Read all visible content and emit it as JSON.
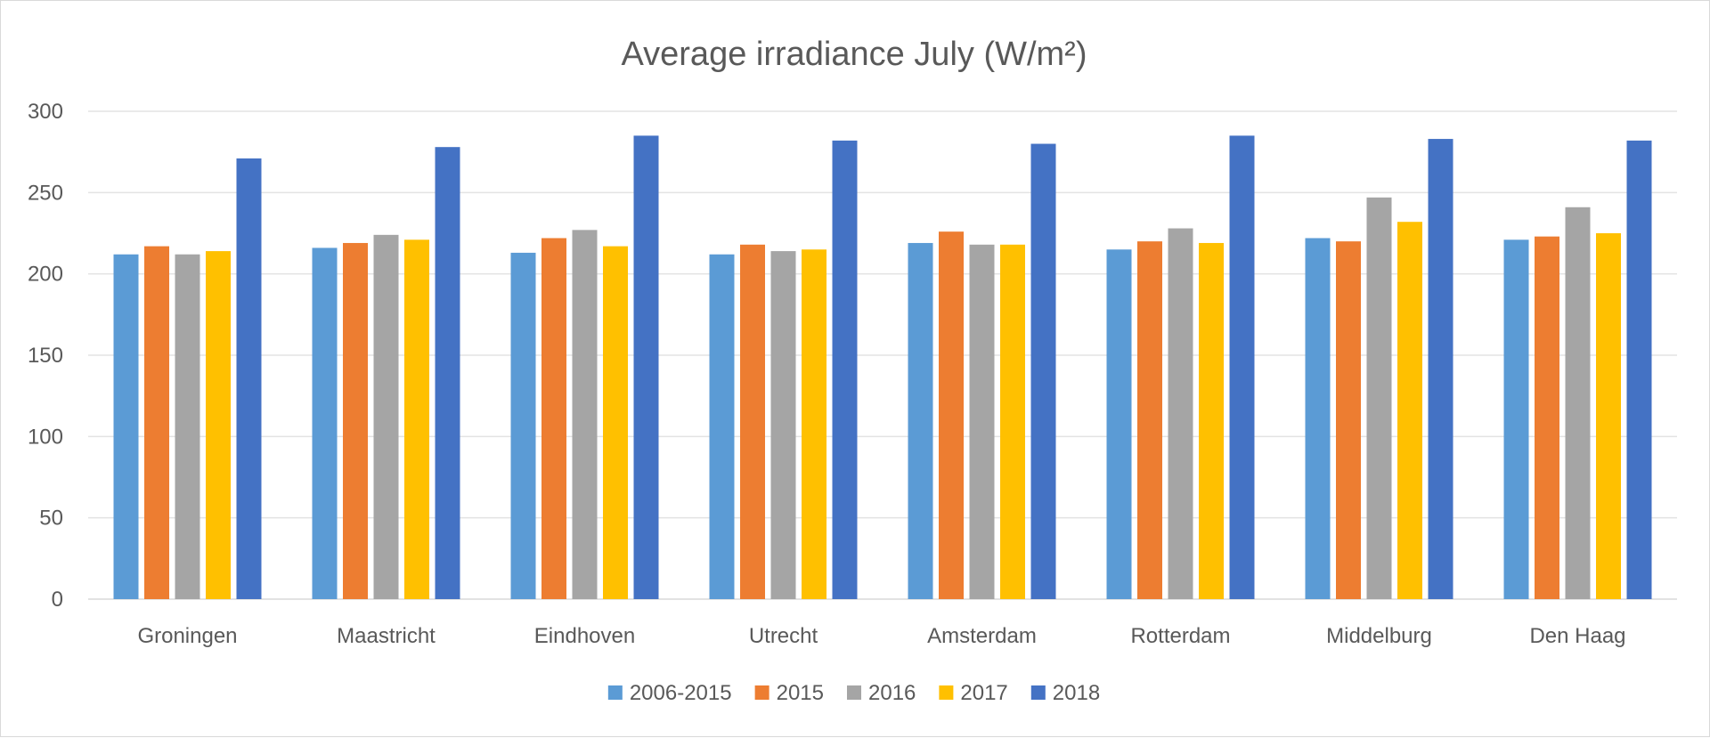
{
  "chart_data": {
    "type": "bar",
    "title": "Average irradiance July (W/m²)",
    "xlabel": "",
    "ylabel": "",
    "ylim": [
      0,
      300
    ],
    "yticks": [
      "0",
      "50",
      "100",
      "150",
      "200",
      "250",
      "300"
    ],
    "grid": true,
    "legend_position": "bottom",
    "categories": [
      "Groningen",
      "Maastricht",
      "Eindhoven",
      "Utrecht",
      "Amsterdam",
      "Rotterdam",
      "Middelburg",
      "Den Haag"
    ],
    "series": [
      {
        "name": "2006-2015",
        "color": "#5B9BD5",
        "values": [
          212,
          216,
          213,
          212,
          219,
          215,
          222,
          221
        ]
      },
      {
        "name": "2015",
        "color": "#ED7D31",
        "values": [
          217,
          219,
          222,
          218,
          226,
          220,
          220,
          223
        ]
      },
      {
        "name": "2016",
        "color": "#A5A5A5",
        "values": [
          212,
          224,
          227,
          214,
          218,
          228,
          247,
          241
        ]
      },
      {
        "name": "2017",
        "color": "#FFC000",
        "values": [
          214,
          221,
          217,
          215,
          218,
          219,
          232,
          225
        ]
      },
      {
        "name": "2018",
        "color": "#4472C4",
        "values": [
          271,
          278,
          285,
          282,
          280,
          285,
          283,
          282
        ]
      }
    ]
  }
}
